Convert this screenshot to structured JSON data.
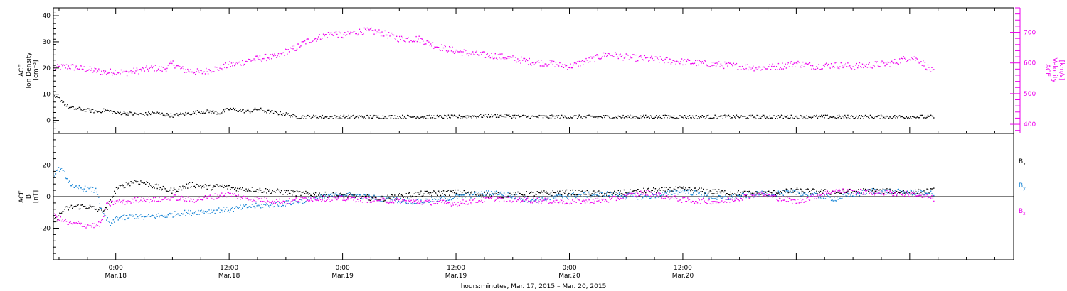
{
  "colors": {
    "density": "#000000",
    "velocity": "#ee00ee",
    "bx": "#000000",
    "by": "#1a86d6",
    "bz": "#ee00ee",
    "axis": "#000000"
  },
  "chart_data": [
    {
      "type": "scatter",
      "panel": "top",
      "ylabel_lines": [
        "ACE",
        "Ion Density",
        "[cm⁻³]"
      ],
      "ylabel_right_lines": [
        "ACE",
        "Velocity",
        "[km/s]"
      ],
      "ylim": [
        -5,
        43
      ],
      "y_ticks": [
        0,
        10,
        20,
        30,
        40
      ],
      "y_tick_labels": [
        "0",
        "10",
        "20",
        "30",
        "40"
      ],
      "right_ylim": [
        370,
        780
      ],
      "right_ticks": [
        400,
        500,
        600,
        700
      ],
      "right_tick_labels": [
        "400",
        "500",
        "600",
        "700"
      ],
      "series": [
        {
          "key": "density",
          "axis": "left",
          "x": [
            -6.5,
            -6,
            -5,
            -4,
            -3,
            -2,
            -1.2,
            -0.5,
            0,
            1,
            2,
            3,
            4,
            5,
            6,
            7,
            8,
            9,
            10,
            11,
            12,
            13,
            14,
            15,
            16,
            17,
            18,
            19,
            20,
            24,
            28,
            32,
            36,
            40,
            44,
            48,
            52,
            56,
            60,
            64,
            68,
            72,
            76,
            80,
            84,
            86.5
          ],
          "y": [
            9,
            8.5,
            5,
            4.5,
            4,
            3.5,
            4,
            3.5,
            3,
            3,
            2.5,
            2.5,
            3,
            2.5,
            2,
            2.5,
            3,
            3.5,
            3.5,
            3,
            4.5,
            4,
            3.5,
            4.5,
            3.5,
            3,
            2.5,
            1.5,
            1.5,
            1.5,
            1.5,
            1.5,
            1.5,
            2,
            1.5,
            1.5,
            1.5,
            1.5,
            1.5,
            1.5,
            1.5,
            1.5,
            1.5,
            1.5,
            1.5,
            1.5
          ]
        },
        {
          "key": "velocity",
          "axis": "right",
          "x": [
            -6.5,
            -5,
            -4,
            -3,
            -2,
            -1,
            0,
            1,
            2,
            3,
            4,
            5,
            6,
            7,
            8,
            9,
            10,
            11,
            12,
            13,
            14,
            15,
            16,
            17,
            18,
            19,
            20,
            21,
            22,
            23,
            24,
            25,
            26,
            27,
            28,
            29,
            30,
            31,
            32,
            34,
            36,
            38,
            40,
            42,
            44,
            46,
            48,
            50,
            52,
            54,
            56,
            58,
            60,
            62,
            64,
            66,
            68,
            70,
            72,
            74,
            76,
            78,
            80,
            82,
            84,
            85,
            86.5
          ],
          "y": [
            585,
            590,
            585,
            580,
            575,
            570,
            575,
            570,
            575,
            580,
            585,
            580,
            600,
            580,
            575,
            570,
            580,
            585,
            595,
            600,
            610,
            615,
            620,
            620,
            640,
            650,
            670,
            680,
            690,
            700,
            690,
            700,
            705,
            705,
            700,
            690,
            680,
            680,
            680,
            655,
            640,
            630,
            625,
            615,
            605,
            600,
            590,
            610,
            630,
            620,
            615,
            610,
            605,
            600,
            595,
            590,
            585,
            590,
            600,
            590,
            595,
            590,
            595,
            600,
            620,
            610,
            570
          ]
        }
      ]
    },
    {
      "type": "scatter",
      "panel": "bottom",
      "ylabel_lines": [
        "ACE",
        "B",
        "[nT]"
      ],
      "ylim": [
        -40,
        40
      ],
      "y_ticks": [
        -20,
        0,
        20
      ],
      "y_tick_labels": [
        "-20",
        "0",
        "20"
      ],
      "legend": [
        "B",
        "B",
        "B"
      ],
      "legend_subscripts": [
        "x",
        "y",
        "z"
      ],
      "legend_position": "right",
      "series": [
        {
          "key": "bx",
          "x": [
            -6.5,
            -5.5,
            -4.5,
            -3,
            -2,
            -1,
            0,
            1,
            2,
            3,
            4,
            5,
            6,
            7,
            8,
            9,
            10,
            11,
            12,
            13,
            14,
            16,
            18,
            20,
            24,
            28,
            32,
            36,
            40,
            44,
            48,
            52,
            56,
            60,
            64,
            68,
            72,
            76,
            80,
            84,
            86.5
          ],
          "y": [
            -15,
            -8,
            -6,
            -6,
            -8,
            -8,
            5,
            8,
            10,
            9,
            7,
            5,
            4,
            6,
            8,
            7,
            6,
            7,
            6,
            5,
            5,
            4,
            3,
            2,
            1,
            -1,
            2,
            3,
            1,
            2,
            3,
            2,
            4,
            5,
            3,
            2,
            4,
            3,
            4,
            3,
            4
          ]
        },
        {
          "key": "by",
          "x": [
            -6.5,
            -6,
            -5.5,
            -5,
            -4.5,
            -4,
            -3,
            -2,
            -1.5,
            -0.5,
            0,
            1,
            2,
            3,
            4,
            5,
            6,
            7,
            8,
            9,
            10,
            11,
            12,
            13,
            14,
            16,
            18,
            20,
            22,
            24,
            28,
            32,
            36,
            40,
            44,
            48,
            52,
            56,
            60,
            64,
            68,
            72,
            76,
            80,
            84,
            86.5
          ],
          "y": [
            15,
            18,
            15,
            10,
            5,
            6,
            5,
            4,
            -10,
            -18,
            -13,
            -13,
            -12,
            -13,
            -12,
            -12,
            -11,
            -10,
            -10,
            -9,
            -9,
            -8,
            -8,
            -7,
            -6,
            -5,
            -4,
            -2,
            0,
            2,
            -1,
            -3,
            0,
            3,
            -2,
            1,
            2,
            0,
            4,
            -1,
            2,
            3,
            -1,
            4,
            3,
            2
          ]
        },
        {
          "key": "bz",
          "x": [
            -6.5,
            -6,
            -5.5,
            -5,
            -4,
            -3,
            -2,
            -1.5,
            -1,
            0,
            1,
            2,
            3,
            4,
            5,
            6,
            7,
            8,
            9,
            10,
            11,
            12,
            13,
            14,
            16,
            18,
            20,
            24,
            28,
            32,
            36,
            40,
            44,
            48,
            52,
            56,
            60,
            64,
            68,
            72,
            76,
            80,
            84,
            86.5
          ],
          "y": [
            -12,
            -14,
            -15,
            -17,
            -17,
            -18,
            -18,
            -16,
            -5,
            -3,
            -3,
            -2,
            -1,
            -2,
            -1,
            0,
            -1,
            -2,
            -1,
            0,
            1,
            2,
            0,
            -1,
            -2,
            -3,
            -1,
            -1,
            -2,
            -3,
            -4,
            -1,
            -2,
            -3,
            -2,
            3,
            -2,
            -3,
            2,
            -3,
            4,
            3,
            2,
            -1
          ]
        }
      ]
    }
  ],
  "time_axis": {
    "xlim": [
      -6.6,
      95
    ],
    "ticks": [
      0,
      12,
      24,
      36,
      48,
      60,
      72
    ],
    "tick_time_labels": [
      "0:00",
      "12:00",
      "0:00",
      "12:00",
      "0:00",
      "12:00"
    ],
    "tick_date_labels": [
      "Mar.18",
      "Mar.18",
      "Mar.19",
      "Mar.19",
      "Mar.20",
      "Mar.20"
    ],
    "label_ticks": [
      0,
      12,
      24,
      36,
      48,
      60
    ],
    "xlabel": "hours:minutes, Mar. 17, 2015 – Mar. 20, 2015"
  }
}
